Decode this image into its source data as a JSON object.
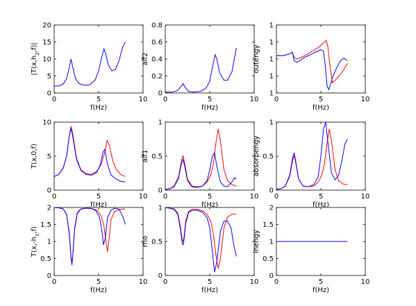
{
  "chart_data": [
    {
      "type": "line",
      "ylabel": "|T(x,h_2,f)|",
      "xlabel": "f(Hz)",
      "xlim": [
        0,
        10
      ],
      "ylim": [
        0,
        20
      ],
      "xticks": [
        "0",
        "5",
        "10"
      ],
      "yticks": [
        "0",
        "5",
        "10",
        "15",
        "20"
      ],
      "series": [
        {
          "color": "#0000ff",
          "x": [
            0,
            0.5,
            1.0,
            1.4,
            1.7,
            1.9,
            2.1,
            2.4,
            2.8,
            3.3,
            4.0,
            4.6,
            5.0,
            5.3,
            5.6,
            5.8,
            6.1,
            6.5,
            6.9,
            7.3,
            7.7,
            8.0
          ],
          "y": [
            2.0,
            2.1,
            2.6,
            4.2,
            7.5,
            10.0,
            7.5,
            4.2,
            2.8,
            2.3,
            2.4,
            3.8,
            6.5,
            10.0,
            13.0,
            11.5,
            8.2,
            6.5,
            7.0,
            9.5,
            13.5,
            15.0
          ]
        }
      ]
    },
    {
      "type": "line",
      "ylabel": "alf2",
      "xlabel": "f(Hz)",
      "xlim": [
        0,
        10
      ],
      "ylim": [
        0,
        0.8
      ],
      "xticks": [
        "0",
        "5",
        "10"
      ],
      "yticks": [
        "0",
        "0.2",
        "0.4",
        "0.6",
        "0.8"
      ],
      "series": [
        {
          "color": "#0000ff",
          "x": [
            0,
            0.8,
            1.4,
            1.8,
            2.0,
            2.2,
            2.6,
            3.2,
            4.0,
            4.6,
            5.0,
            5.3,
            5.6,
            5.8,
            6.1,
            6.6,
            7.0,
            7.5,
            7.8,
            8.0
          ],
          "y": [
            0.01,
            0.01,
            0.03,
            0.08,
            0.11,
            0.07,
            0.02,
            0.01,
            0.02,
            0.06,
            0.14,
            0.3,
            0.45,
            0.4,
            0.24,
            0.15,
            0.15,
            0.25,
            0.42,
            0.53
          ]
        }
      ]
    },
    {
      "type": "line",
      "ylabel": "outengy",
      "xlabel": "f(Hz)",
      "xlim": [
        0,
        10
      ],
      "ylim": [
        0,
        4
      ],
      "xticks": [
        "0",
        "5",
        "10"
      ],
      "yticks": [
        "1",
        "1",
        "1",
        "1",
        "1"
      ],
      "series": [
        {
          "color": "#ff0000",
          "x": [
            0,
            0.8,
            1.5,
            1.8,
            2.0,
            2.3,
            2.6,
            3.2,
            4.0,
            4.8,
            5.3,
            5.6,
            5.8,
            6.0,
            6.3,
            6.7,
            7.2,
            7.6,
            8.0
          ],
          "y": [
            2.2,
            2.2,
            2.3,
            2.4,
            2.1,
            2.0,
            2.05,
            2.2,
            2.45,
            2.7,
            2.95,
            3.1,
            2.7,
            1.7,
            0.6,
            0.8,
            1.1,
            1.4,
            1.75
          ]
        },
        {
          "color": "#0000ff",
          "x": [
            0,
            0.8,
            1.5,
            1.8,
            2.0,
            2.3,
            2.6,
            3.2,
            4.0,
            4.6,
            5.0,
            5.3,
            5.5,
            5.7,
            5.9,
            6.3,
            6.7,
            7.2,
            7.6,
            8.0
          ],
          "y": [
            2.2,
            2.2,
            2.3,
            2.4,
            1.9,
            1.8,
            1.9,
            2.1,
            2.3,
            2.45,
            2.55,
            2.45,
            1.6,
            0.4,
            0.2,
            0.9,
            1.4,
            1.9,
            2.05,
            1.9
          ]
        }
      ]
    },
    {
      "type": "line",
      "ylabel": "T(x,0,f)",
      "xlabel": "f(Hz)",
      "xlim": [
        0,
        10
      ],
      "ylim": [
        0,
        10
      ],
      "xticks": [
        "0",
        "5",
        "10"
      ],
      "yticks": [
        "0",
        "5",
        "10"
      ],
      "series": [
        {
          "color": "#ff0000",
          "x": [
            0,
            0.5,
            1.0,
            1.4,
            1.7,
            1.9,
            2.1,
            2.5,
            3.0,
            3.6,
            4.2,
            4.8,
            5.3,
            5.7,
            5.95,
            6.2,
            6.6,
            7.0,
            7.5,
            8.0
          ],
          "y": [
            2.0,
            2.3,
            3.2,
            5.0,
            8.0,
            9.4,
            8.2,
            4.8,
            3.0,
            2.4,
            2.3,
            2.8,
            3.8,
            5.6,
            7.3,
            6.6,
            4.3,
            3.0,
            2.3,
            2.0
          ]
        },
        {
          "color": "#0000ff",
          "x": [
            0,
            0.5,
            1.0,
            1.4,
            1.7,
            1.9,
            2.1,
            2.5,
            3.0,
            3.6,
            4.2,
            4.8,
            5.2,
            5.5,
            5.7,
            6.0,
            6.4,
            7.0,
            7.5,
            8.0
          ],
          "y": [
            2.0,
            2.3,
            3.2,
            5.0,
            8.0,
            9.1,
            7.8,
            4.6,
            2.9,
            2.3,
            2.2,
            2.6,
            3.8,
            5.6,
            6.0,
            3.8,
            2.2,
            1.6,
            1.3,
            1.2
          ]
        }
      ]
    },
    {
      "type": "line",
      "ylabel": "alf1",
      "xlabel": "f(Hz)",
      "xlim": [
        0,
        10
      ],
      "ylim": [
        0,
        1
      ],
      "xticks": [
        "0",
        "5",
        "10"
      ],
      "yticks": [
        "0",
        "0.5",
        "1"
      ],
      "series": [
        {
          "color": "#ff0000",
          "x": [
            0,
            0.5,
            1.0,
            1.5,
            1.8,
            2.0,
            2.2,
            2.5,
            3.0,
            3.6,
            4.2,
            4.7,
            5.1,
            5.4,
            5.7,
            5.95,
            6.2,
            6.6,
            7.0,
            7.5,
            8.0
          ],
          "y": [
            0.01,
            0.02,
            0.06,
            0.2,
            0.42,
            0.51,
            0.38,
            0.16,
            0.06,
            0.05,
            0.06,
            0.12,
            0.22,
            0.38,
            0.7,
            0.9,
            0.72,
            0.3,
            0.14,
            0.08,
            0.06
          ]
        },
        {
          "color": "#0000ff",
          "x": [
            0,
            0.5,
            1.0,
            1.5,
            1.8,
            2.0,
            2.2,
            2.5,
            3.0,
            3.6,
            4.2,
            4.7,
            5.0,
            5.3,
            5.55,
            5.8,
            6.2,
            6.6,
            7.0,
            7.5,
            7.8,
            8.0
          ],
          "y": [
            0.01,
            0.02,
            0.05,
            0.18,
            0.38,
            0.45,
            0.34,
            0.14,
            0.05,
            0.04,
            0.06,
            0.14,
            0.3,
            0.5,
            0.55,
            0.35,
            0.12,
            0.06,
            0.05,
            0.12,
            0.18,
            0.16
          ]
        }
      ]
    },
    {
      "type": "line",
      "ylabel": "absorpengy",
      "xlabel": "f(Hz)",
      "xlim": [
        0,
        10
      ],
      "ylim": [
        0,
        1
      ],
      "xticks": [
        "0",
        "5",
        "10"
      ],
      "yticks": [
        "0",
        "0.5",
        "1"
      ],
      "series": [
        {
          "color": "#ff0000",
          "x": [
            0,
            0.5,
            1.0,
            1.5,
            1.8,
            2.0,
            2.2,
            2.5,
            3.0,
            3.6,
            4.2,
            4.7,
            5.1,
            5.4,
            5.7,
            5.95,
            6.2,
            6.6,
            7.0,
            7.5,
            8.0
          ],
          "y": [
            0.01,
            0.02,
            0.06,
            0.2,
            0.42,
            0.51,
            0.38,
            0.16,
            0.06,
            0.05,
            0.06,
            0.12,
            0.22,
            0.38,
            0.7,
            0.9,
            0.72,
            0.3,
            0.14,
            0.09,
            0.08
          ]
        },
        {
          "color": "#0000ff",
          "x": [
            0,
            0.5,
            1.0,
            1.5,
            1.8,
            2.0,
            2.2,
            2.5,
            3.0,
            3.6,
            4.2,
            4.7,
            5.0,
            5.3,
            5.55,
            5.8,
            6.2,
            6.6,
            7.0,
            7.4,
            7.7,
            8.0
          ],
          "y": [
            0.01,
            0.02,
            0.06,
            0.22,
            0.46,
            0.55,
            0.4,
            0.16,
            0.06,
            0.05,
            0.08,
            0.2,
            0.5,
            0.9,
            1.0,
            0.7,
            0.25,
            0.15,
            0.22,
            0.45,
            0.68,
            0.75
          ]
        }
      ]
    },
    {
      "type": "line",
      "ylabel": "T(x,-h_1,f)",
      "xlabel": "f(Hz)",
      "xlim": [
        0,
        10
      ],
      "ylim": [
        0,
        2
      ],
      "xticks": [
        "0",
        "5",
        "10"
      ],
      "yticks": [
        "0",
        "0.5",
        "1",
        "1.5",
        "2"
      ],
      "series": [
        {
          "color": "#ff0000",
          "x": [
            0,
            0.5,
            1.0,
            1.4,
            1.7,
            1.9,
            2.0,
            2.1,
            2.3,
            2.6,
            3.0,
            3.6,
            4.2,
            4.8,
            5.3,
            5.6,
            5.85,
            6.0,
            6.15,
            6.4,
            6.8,
            7.3,
            8.0
          ],
          "y": [
            2.0,
            1.99,
            1.96,
            1.8,
            1.2,
            0.5,
            0.3,
            0.6,
            1.4,
            1.85,
            1.96,
            1.98,
            1.97,
            1.92,
            1.75,
            1.45,
            0.95,
            0.7,
            1.0,
            1.65,
            1.88,
            1.94,
            1.96
          ]
        },
        {
          "color": "#0000ff",
          "x": [
            0,
            0.5,
            1.0,
            1.4,
            1.7,
            1.9,
            2.0,
            2.1,
            2.3,
            2.6,
            3.0,
            3.6,
            4.2,
            4.7,
            5.1,
            5.35,
            5.55,
            5.75,
            6.0,
            6.4,
            6.8,
            7.3,
            7.7,
            8.0
          ],
          "y": [
            2.0,
            1.99,
            1.96,
            1.8,
            1.25,
            0.55,
            0.35,
            0.6,
            1.35,
            1.82,
            1.95,
            1.98,
            1.97,
            1.9,
            1.7,
            1.35,
            0.9,
            1.1,
            1.7,
            1.92,
            1.98,
            1.95,
            1.75,
            1.5
          ]
        }
      ]
    },
    {
      "type": "line",
      "ylabel": "rho",
      "xlabel": "f(Hz)",
      "xlim": [
        0,
        10
      ],
      "ylim": [
        0,
        1
      ],
      "xticks": [
        "0",
        "5",
        "10"
      ],
      "yticks": [
        "0",
        "0.5",
        "1"
      ],
      "series": [
        {
          "color": "#ff0000",
          "x": [
            0,
            0.5,
            1.0,
            1.4,
            1.7,
            1.9,
            2.0,
            2.1,
            2.3,
            2.6,
            3.0,
            3.6,
            4.2,
            4.7,
            5.1,
            5.4,
            5.7,
            5.95,
            6.2,
            6.6,
            7.0,
            7.5,
            8.0
          ],
          "y": [
            1.0,
            0.99,
            0.98,
            0.92,
            0.72,
            0.52,
            0.5,
            0.56,
            0.8,
            0.94,
            0.97,
            0.97,
            0.95,
            0.9,
            0.8,
            0.62,
            0.3,
            0.1,
            0.25,
            0.7,
            0.86,
            0.9,
            0.9
          ]
        },
        {
          "color": "#0000ff",
          "x": [
            0,
            0.5,
            1.0,
            1.4,
            1.7,
            1.9,
            2.0,
            2.1,
            2.3,
            2.6,
            3.0,
            3.6,
            4.2,
            4.7,
            5.0,
            5.3,
            5.55,
            5.8,
            6.2,
            6.6,
            7.0,
            7.4,
            7.7,
            8.0
          ],
          "y": [
            1.0,
            0.99,
            0.97,
            0.9,
            0.68,
            0.48,
            0.45,
            0.52,
            0.76,
            0.92,
            0.96,
            0.96,
            0.93,
            0.85,
            0.7,
            0.35,
            0.05,
            0.2,
            0.65,
            0.8,
            0.8,
            0.7,
            0.45,
            0.28
          ]
        }
      ]
    },
    {
      "type": "line",
      "ylabel": "inengy",
      "xlabel": "f(Hz)",
      "xlim": [
        0,
        10
      ],
      "ylim": [
        0,
        2
      ],
      "xticks": [
        "0",
        "5",
        "10"
      ],
      "yticks": [
        "0",
        "0.5",
        "1",
        "1.5",
        "2"
      ],
      "series": [
        {
          "color": "#0000ff",
          "x": [
            0,
            8.0
          ],
          "y": [
            1.0,
            1.0
          ]
        }
      ]
    }
  ]
}
